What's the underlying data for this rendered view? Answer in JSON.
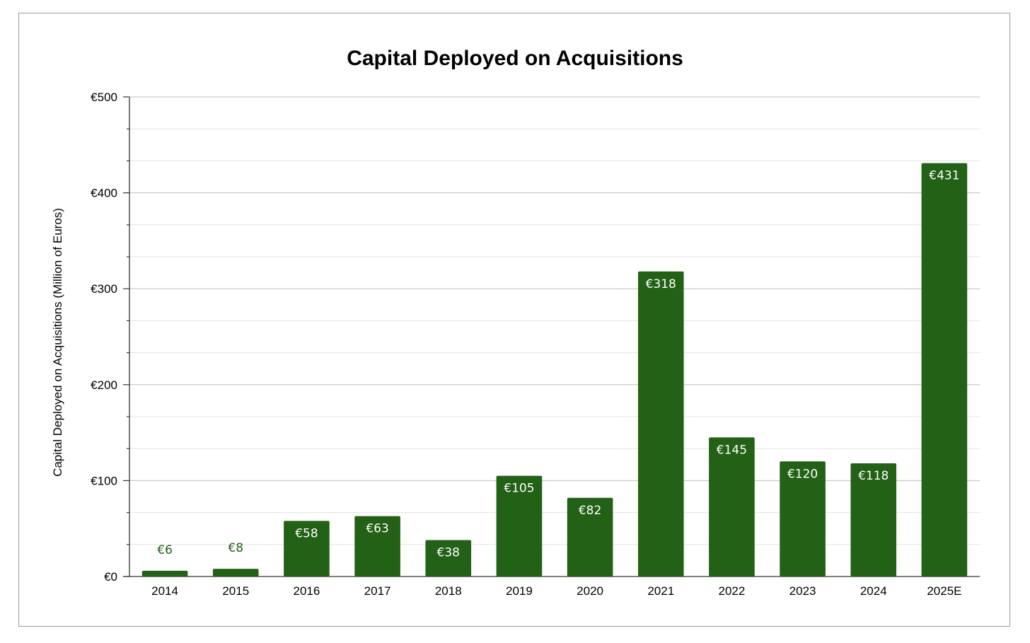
{
  "chart_data": {
    "type": "bar",
    "title": "Capital Deployed on Acquisitions",
    "xlabel": "",
    "ylabel": "Capital Deployed on Acquisitions (Million of Euros)",
    "categories": [
      "2014",
      "2015",
      "2016",
      "2017",
      "2018",
      "2019",
      "2020",
      "2021",
      "2022",
      "2023",
      "2024",
      "2025E"
    ],
    "values": [
      6,
      8,
      58,
      63,
      38,
      105,
      82,
      318,
      145,
      120,
      118,
      431
    ],
    "data_labels": [
      "€6",
      "€8",
      "€58",
      "€63",
      "€38",
      "€105",
      "€82",
      "€318",
      "€145",
      "€120",
      "€118",
      "€431"
    ],
    "ylim": [
      0,
      500
    ],
    "yticks": [
      0,
      100,
      200,
      300,
      400,
      500
    ],
    "ytick_labels": [
      "€0",
      "€100",
      "€200",
      "€300",
      "€400",
      "€500"
    ],
    "minor_gridlines": true,
    "grid": true,
    "legend": "none",
    "bar_color": "#226116",
    "inside_label_color": "#ffffff",
    "outside_label_color": "#226116"
  }
}
